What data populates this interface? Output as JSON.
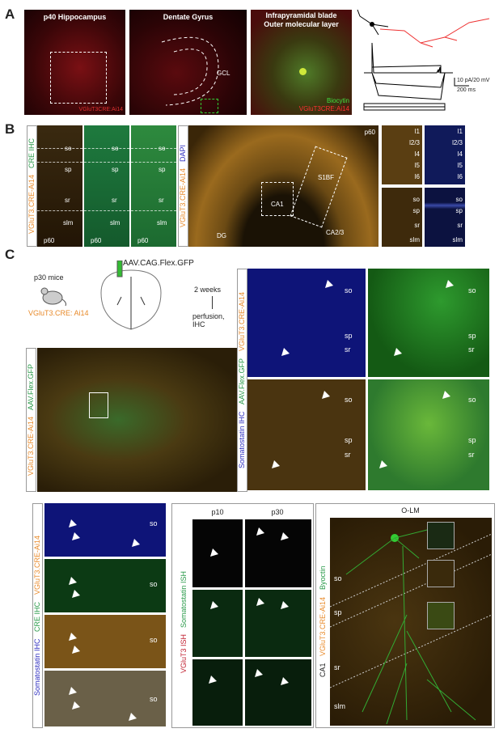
{
  "panel_a": {
    "letter": "A",
    "hippocampus": {
      "title": "p40 Hippocampus",
      "label": "VGluT3CRE:Ai14"
    },
    "dentate": {
      "title": "Dentate Gyrus",
      "layer": "GCL"
    },
    "blade": {
      "title": [
        "Infrapyramidal blade",
        "Outer molecular layer"
      ],
      "legend": [
        "Biocytin",
        "VGluT3CRE:Ai14"
      ]
    },
    "scale": {
      "y": "10 pA/20 mV",
      "x": "200 ms"
    }
  },
  "panel_b": {
    "letter": "B",
    "side_label": [
      "VGluT3.CRE-Ai14",
      "CRE IHC"
    ],
    "strips": [
      {
        "layers": [
          "so",
          "sp",
          "sr",
          "slm"
        ],
        "age": "p60"
      },
      {
        "layers": [
          "so",
          "sp",
          "sr",
          "slm"
        ],
        "age": "p60"
      },
      {
        "layers": [
          "so",
          "sp",
          "sr",
          "slm"
        ],
        "age": "p60"
      }
    ],
    "side_label2": [
      "VGluT3.CRE-Ai14",
      "DAPI"
    ],
    "cortex": {
      "age": "p60",
      "regions": [
        "S1BF",
        "CA1",
        "DG",
        "CA2/3"
      ]
    },
    "insets": [
      {
        "layers": [
          "l1",
          "l2/3",
          "l4",
          "l5",
          "l6"
        ]
      },
      {
        "layers": [
          "l1",
          "l2/3",
          "l4",
          "l5",
          "l6"
        ]
      },
      {
        "layers": [
          "so",
          "sp",
          "sr",
          "slm"
        ]
      },
      {
        "layers": [
          "so",
          "sp",
          "sr",
          "slm"
        ]
      }
    ]
  },
  "panel_c": {
    "letter": "C",
    "schematic": {
      "mice": "p30 mice",
      "line": "VGluT3.CRE: Ai14",
      "virus": "AAV.CAG.Flex.GFP",
      "time": "2 weeks",
      "procedure": "perfusion, IHC"
    },
    "overview_label": [
      "VGluT3.CRE-Ai14",
      "AAV.Flex.GFP"
    ],
    "grid_label": [
      "Somatostatin IHC",
      "AAV.Flex.GFP",
      "VGluT3.CRE-Ai14"
    ],
    "grid": [
      {
        "layers": [
          "so",
          "sp",
          "sr"
        ]
      },
      {
        "layers": [
          "so",
          "sp",
          "sr"
        ]
      },
      {
        "layers": [
          "so",
          "sp",
          "sr"
        ]
      },
      {
        "layers": [
          "so",
          "sp",
          "sr"
        ]
      }
    ],
    "bottom_left": {
      "label": [
        "Somatostatin IHC",
        "CRE IHC",
        "VGluT3.CRE-Ai14"
      ],
      "layers": [
        "so",
        "so",
        "so",
        "so"
      ]
    },
    "ish": {
      "columns": [
        "p10",
        "p30"
      ],
      "label": [
        "VGluT3 ISH",
        "Somatostatin ISH"
      ]
    },
    "olm": {
      "title": "O-LM",
      "label": [
        "CA1",
        "VGluT3.CRE-Ai14",
        "Byoctin"
      ],
      "layers": [
        "so",
        "sp",
        "sr",
        "slm"
      ]
    }
  }
}
